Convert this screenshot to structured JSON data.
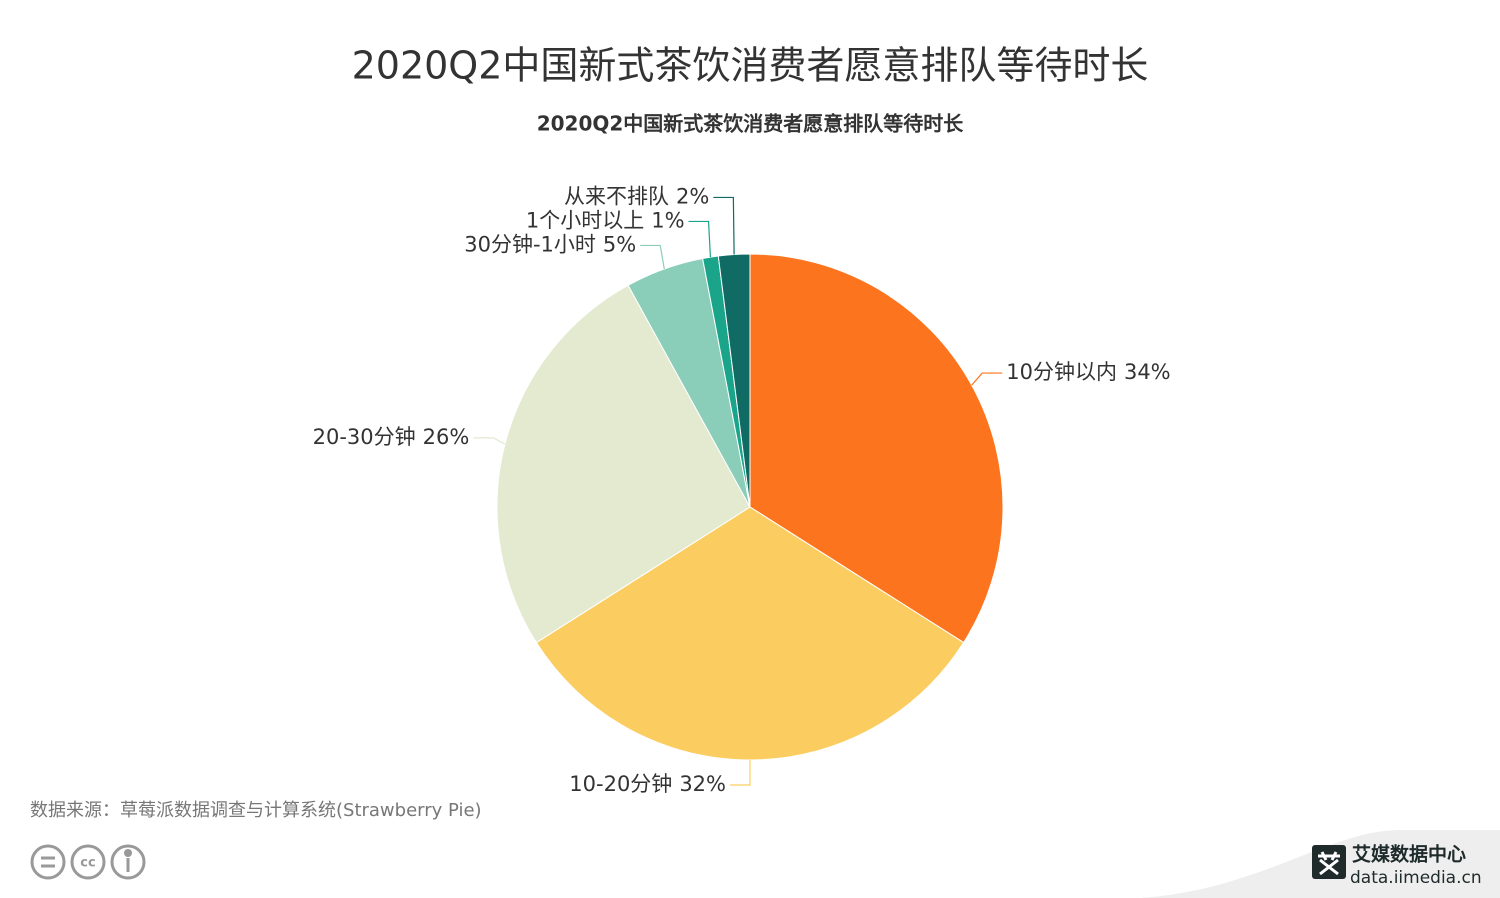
{
  "chart_data": {
    "type": "pie",
    "title": "2020Q2中国新式茶饮消费者愿意排队等待时长",
    "subtitle": "2020Q2中国新式茶饮消费者愿意排队等待时长",
    "categories": [
      "10分钟以内",
      "10-20分钟",
      "20-30分钟",
      "30分钟-1小时",
      "1个小时以上",
      "从来不排队"
    ],
    "values": [
      34,
      32,
      26,
      5,
      1,
      2
    ],
    "value_labels": [
      "34%",
      "32%",
      "26%",
      "5%",
      "1%",
      "2%"
    ],
    "colors": [
      "#fd741e",
      "#fbcd60",
      "#e3ead0",
      "#8acdb9",
      "#1aa58a",
      "#0f6b63"
    ]
  },
  "source": "数据来源：草莓派数据调查与计算系统(Strawberry Pie)",
  "logo": {
    "name": "艾媒数据中心",
    "url": "data.iimedia.cn"
  }
}
